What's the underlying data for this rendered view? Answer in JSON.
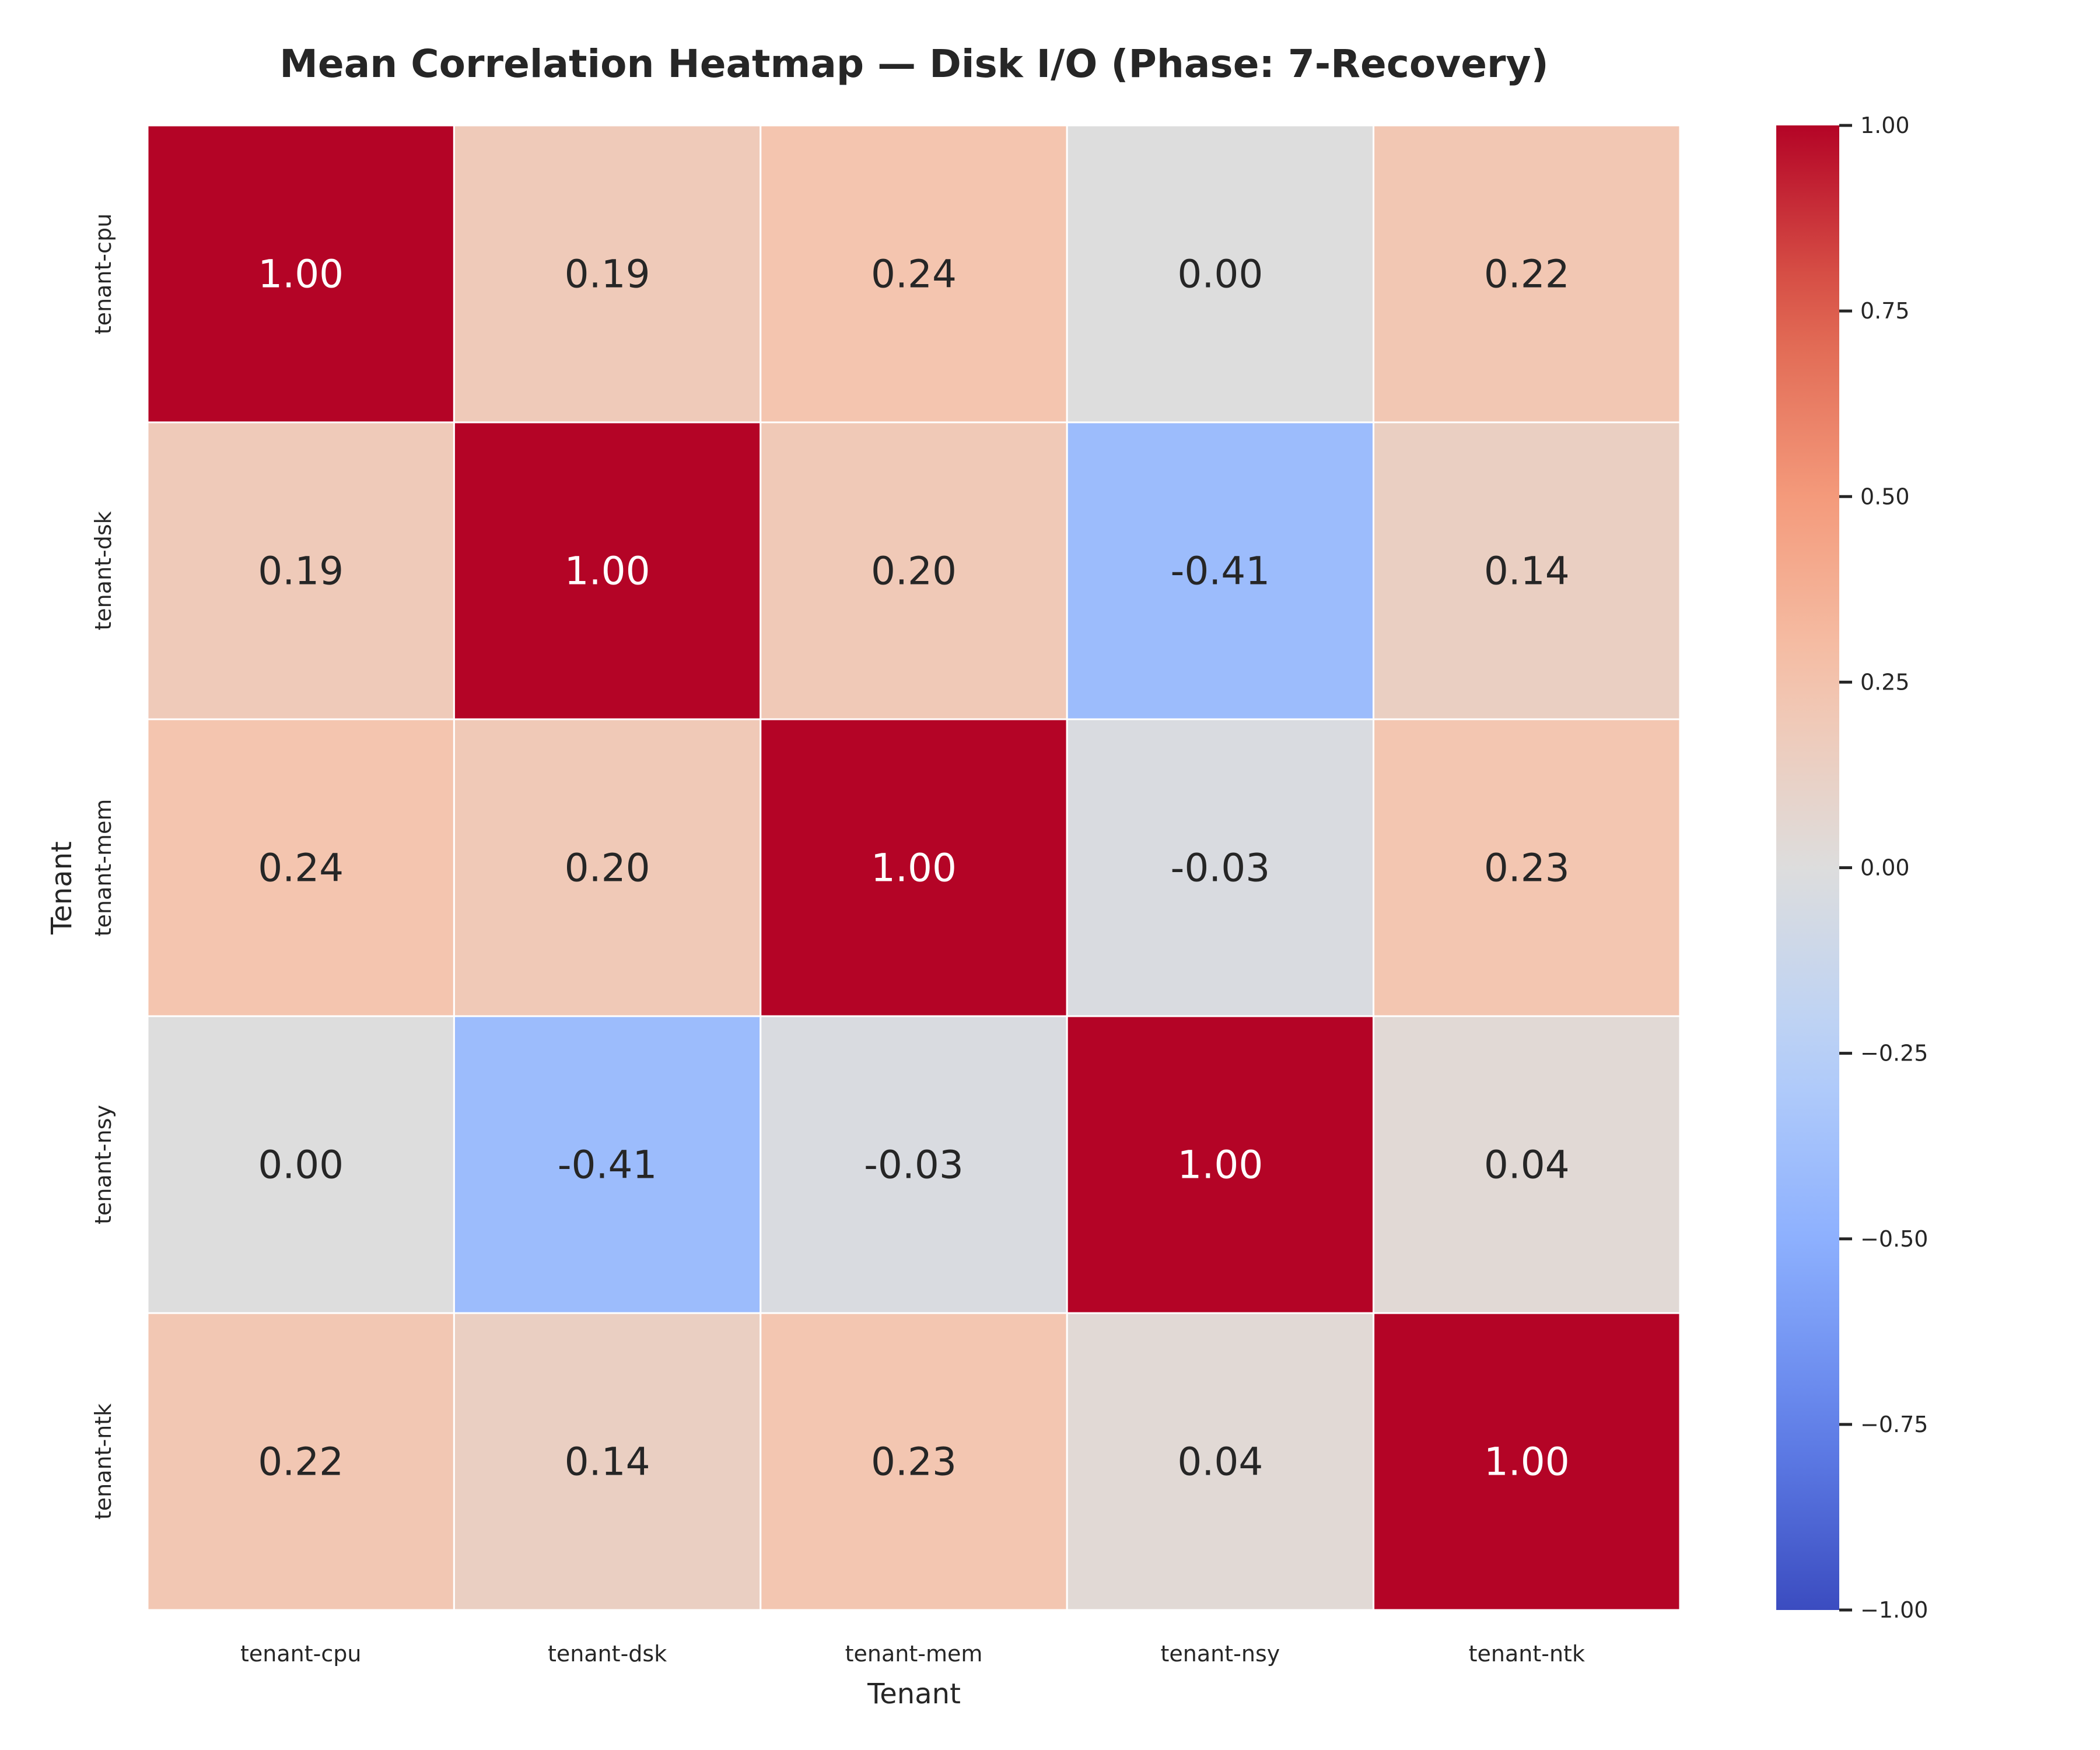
{
  "chart_data": {
    "type": "heatmap",
    "title": "Mean Correlation Heatmap — Disk I/O (Phase: 7-Recovery)",
    "xlabel": "Tenant",
    "ylabel": "Tenant",
    "x_categories": [
      "tenant-cpu",
      "tenant-dsk",
      "tenant-mem",
      "tenant-nsy",
      "tenant-ntk"
    ],
    "y_categories": [
      "tenant-cpu",
      "tenant-dsk",
      "tenant-mem",
      "tenant-nsy",
      "tenant-ntk"
    ],
    "values": [
      [
        1.0,
        0.19,
        0.24,
        0.0,
        0.22
      ],
      [
        0.19,
        1.0,
        0.2,
        -0.41,
        0.14
      ],
      [
        0.24,
        0.2,
        1.0,
        -0.03,
        0.23
      ],
      [
        0.0,
        -0.41,
        -0.03,
        1.0,
        0.04
      ],
      [
        0.22,
        0.14,
        0.23,
        0.04,
        1.0
      ]
    ],
    "value_labels": [
      [
        "1.00",
        "0.19",
        "0.24",
        "0.00",
        "0.22"
      ],
      [
        "0.19",
        "1.00",
        "0.20",
        "-0.41",
        "0.14"
      ],
      [
        "0.24",
        "0.20",
        "1.00",
        "-0.03",
        "0.23"
      ],
      [
        "0.00",
        "-0.41",
        "-0.03",
        "1.00",
        "0.04"
      ],
      [
        "0.22",
        "0.14",
        "0.23",
        "0.04",
        "1.00"
      ]
    ],
    "colormap": "coolwarm",
    "vmin": -1.0,
    "vmax": 1.0,
    "colorbar_ticks": [
      1.0,
      0.75,
      0.5,
      0.25,
      0.0,
      -0.25,
      -0.5,
      -0.75,
      -1.0
    ],
    "colorbar_tick_labels": [
      "1.00",
      "0.75",
      "0.50",
      "0.25",
      "0.00",
      "−0.25",
      "−0.50",
      "−0.75",
      "−1.00"
    ],
    "grid": false,
    "legend": "colorbar-right"
  }
}
